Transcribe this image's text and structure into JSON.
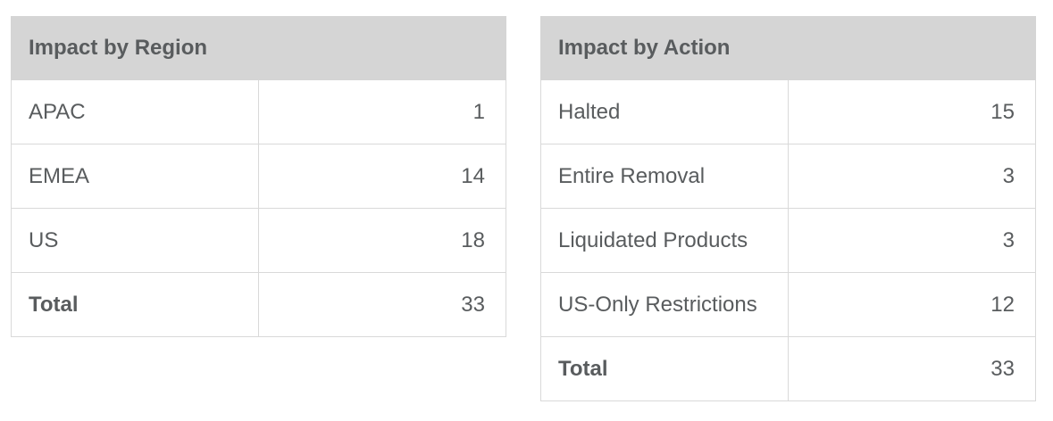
{
  "colors": {
    "page_background": "#ffffff",
    "header_background": "#d5d5d5",
    "row_border": "#d9d9d9",
    "text": "#595c5e"
  },
  "tables": [
    {
      "title": "Impact by Region",
      "rows": [
        {
          "label": "APAC",
          "value": "1"
        },
        {
          "label": "EMEA",
          "value": "14"
        },
        {
          "label": "US",
          "value": "18"
        },
        {
          "label": "Total",
          "value": "33"
        }
      ]
    },
    {
      "title": "Impact by Action",
      "rows": [
        {
          "label": "Halted",
          "value": "15"
        },
        {
          "label": "Entire Removal",
          "value": "3"
        },
        {
          "label": "Liquidated Products",
          "value": "3"
        },
        {
          "label": "US-Only Restrictions",
          "value": "12"
        },
        {
          "label": "Total",
          "value": "33"
        }
      ]
    }
  ]
}
